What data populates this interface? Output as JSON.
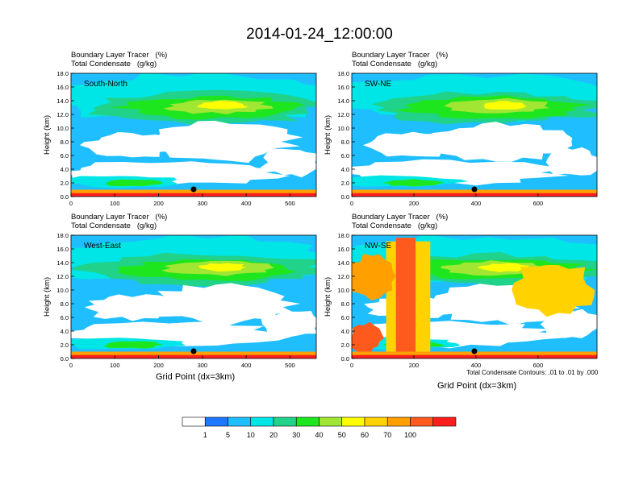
{
  "title": "2014-01-24_12:00:00",
  "colors": [
    "#ffffff",
    "#1e78ff",
    "#1ebeff",
    "#00e6e6",
    "#20d28a",
    "#1ee61e",
    "#a0e632",
    "#ffff00",
    "#ffd200",
    "#ffa000",
    "#ff5a1e",
    "#ff1e1e"
  ],
  "colorbar": {
    "labels": [
      "1",
      "5",
      "10",
      "20",
      "30",
      "40",
      "50",
      "60",
      "70",
      "100"
    ]
  },
  "footnote": "Total Condensate Contours: .01 to .01 by .000",
  "x_axis_title": "Grid Point (dx=3km)",
  "chart_data": [
    {
      "type": "contour",
      "label": "South-North",
      "title_line1": "Boundary Layer Tracer   (%)",
      "title_line2": "Total Condensate   (g/kg)",
      "ylabel": "Height (km)",
      "xlim": [
        0,
        560
      ],
      "ylim": [
        0,
        18
      ],
      "xticks": [
        0,
        100,
        200,
        300,
        400,
        500
      ],
      "yticks": [
        "0.0",
        "2.0",
        "4.0",
        "6.0",
        "8.0",
        "10.0",
        "12.0",
        "14.0",
        "16.0",
        "18.0"
      ],
      "marker_x": 280,
      "xlabel": ""
    },
    {
      "type": "contour",
      "label": "SW-NE",
      "title_line1": "Boundary Layer Tracer   (%)",
      "title_line2": "Total Condensate   (g/kg)",
      "ylabel": "Height (km)",
      "xlim": [
        0,
        790
      ],
      "ylim": [
        0,
        18
      ],
      "xticks": [
        0,
        200,
        400,
        600
      ],
      "yticks": [
        "0.0",
        "2.0",
        "4.0",
        "6.0",
        "8.0",
        "10.0",
        "12.0",
        "14.0",
        "16.0",
        "18.0"
      ],
      "marker_x": 395,
      "xlabel": ""
    },
    {
      "type": "contour",
      "label": "West-East",
      "title_line1": "Boundary Layer Tracer   (%)",
      "title_line2": "Total Condensate   (g/kg)",
      "ylabel": "Height (km)",
      "xlim": [
        0,
        560
      ],
      "ylim": [
        0,
        18
      ],
      "xticks": [
        0,
        100,
        200,
        300,
        400,
        500
      ],
      "yticks": [
        "0.0",
        "2.0",
        "4.0",
        "6.0",
        "8.0",
        "10.0",
        "12.0",
        "14.0",
        "16.0",
        "18.0"
      ],
      "marker_x": 280,
      "xlabel": "Grid Point (dx=3km)"
    },
    {
      "type": "contour",
      "label": "NW-SE",
      "title_line1": "Boundary Layer Tracer   (%)",
      "title_line2": "Total Condensate   (g/kg)",
      "ylabel": "Height (km)",
      "xlim": [
        0,
        790
      ],
      "ylim": [
        0,
        18
      ],
      "xticks": [
        0,
        200,
        400,
        600
      ],
      "yticks": [
        "0.0",
        "2.0",
        "4.0",
        "6.0",
        "8.0",
        "10.0",
        "12.0",
        "14.0",
        "16.0",
        "18.0"
      ],
      "marker_x": 395,
      "xlabel": "Grid Point (dx=3km)"
    }
  ]
}
